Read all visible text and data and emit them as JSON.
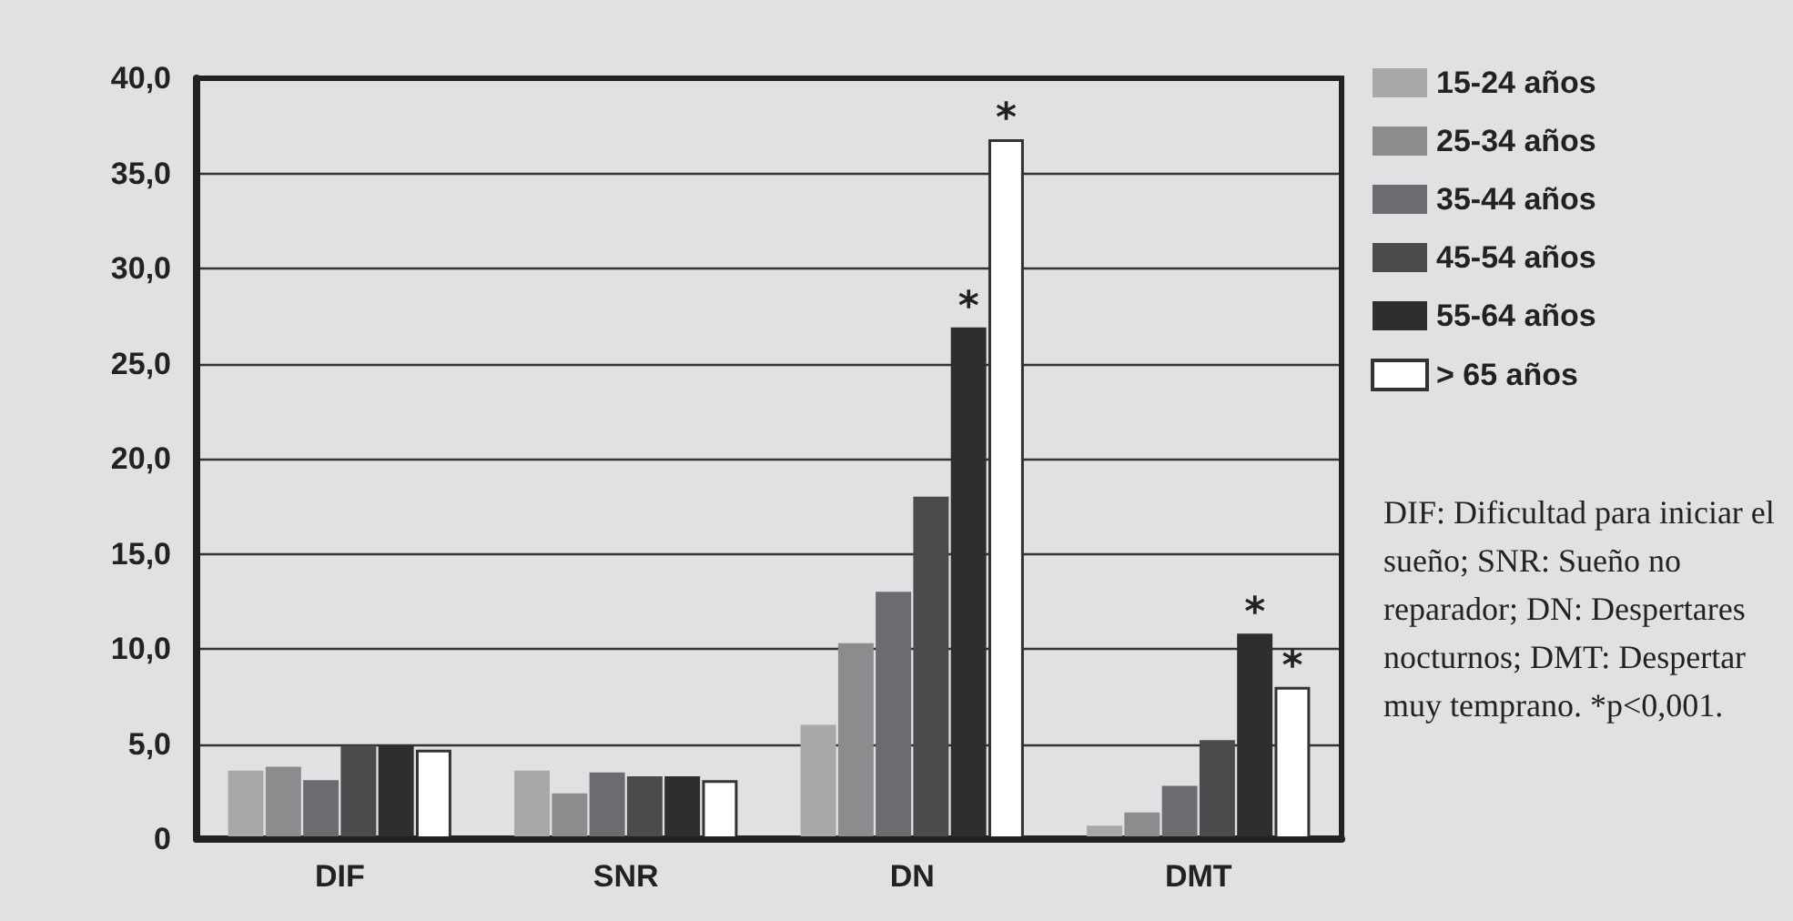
{
  "chart_data": {
    "type": "bar",
    "categories": [
      "DIF",
      "SNR",
      "DN",
      "DMT"
    ],
    "series": [
      {
        "name": "15-24 años",
        "color": "#a7a8aa",
        "values": [
          3.6,
          3.6,
          6.0,
          0.7
        ]
      },
      {
        "name": "25-34 años",
        "color": "#8b8c8e",
        "values": [
          3.8,
          2.4,
          10.3,
          1.4
        ]
      },
      {
        "name": "35-44 años",
        "color": "#6b6c6f",
        "values": [
          3.1,
          3.5,
          13.0,
          2.8
        ]
      },
      {
        "name": "45-54 años",
        "color": "#4a4b4d",
        "values": [
          4.9,
          3.3,
          18.0,
          5.2
        ]
      },
      {
        "name": "55-64 años",
        "color": "#2f2d2e",
        "values": [
          4.9,
          3.3,
          26.9,
          10.8
        ],
        "value_labels": [
          null,
          null,
          "*",
          "*"
        ]
      },
      {
        "name": "> 65 años",
        "color": "#ffffff",
        "values": [
          4.7,
          3.1,
          36.8,
          8.0
        ],
        "value_labels": [
          null,
          null,
          "*",
          "*"
        ]
      }
    ],
    "ylim": [
      0,
      40
    ],
    "yticks": [
      0,
      {
        "value": 5,
        "label": "5,0"
      },
      {
        "value": 10,
        "label": "10,0"
      },
      {
        "value": 15,
        "label": "15,0"
      },
      {
        "value": 20,
        "label": "20,0"
      },
      {
        "value": 25,
        "label": "25,0"
      },
      {
        "value": 30,
        "label": "30,0"
      },
      {
        "value": 35,
        "label": "35,0"
      },
      {
        "value": 40,
        "label": "40,0"
      }
    ],
    "grid": "y",
    "legend": "top right",
    "annotations": [
      "DIF: Dificultad para iniciar el sueño; SNR: Sueño no reparador; DN: Despertares nocturnos; DMT: Despertar muy temprano. *p<0,001."
    ]
  }
}
